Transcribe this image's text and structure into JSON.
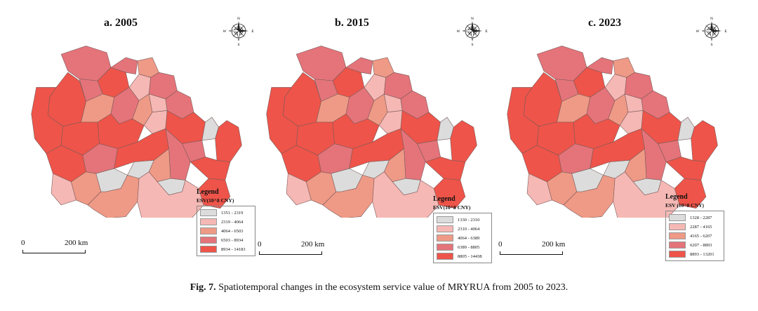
{
  "figure": {
    "caption_label": "Fig. 7.",
    "caption_text": "Spatiotemporal changes in the ecosystem service value of MRYRUA from 2005 to 2023."
  },
  "scale": {
    "zero": "0",
    "distance": "200 km"
  },
  "legend": {
    "title": "Legend"
  },
  "compass": {
    "n": "N",
    "s": "S",
    "e": "E",
    "w": "W"
  },
  "colors": {
    "class1": "#dcdcdc",
    "class2": "#f5b8b4",
    "class3": "#ef9a86",
    "class4": "#e4747a",
    "class5": "#ee5449",
    "border": "#7a5a5a"
  },
  "panels": [
    {
      "title": "a. 2005",
      "unit": "ESV(10^8 CNY)",
      "classes": [
        "1351 - 2319",
        "2319 - 4064",
        "4064 - 6503",
        "6503 - 8934",
        "8934 - 14183"
      ],
      "region_classes": [
        4,
        5,
        4,
        5,
        5,
        4,
        3,
        2,
        3,
        4,
        5,
        4,
        3,
        2,
        5,
        4,
        2,
        5,
        1,
        5,
        5,
        4,
        5,
        4,
        4,
        5,
        3,
        1,
        2,
        3,
        1,
        5,
        1,
        3,
        2
      ]
    },
    {
      "title": "b. 2015",
      "unit": "ESV(10^8 CNY)",
      "classes": [
        "1330 - 2310",
        "2310 - 4064",
        "4064 - 6389",
        "6389 - 8805",
        "8805 - 14438"
      ],
      "region_classes": [
        4,
        5,
        4,
        5,
        5,
        4,
        3,
        2,
        3,
        4,
        5,
        4,
        3,
        2,
        5,
        4,
        2,
        5,
        1,
        5,
        5,
        4,
        5,
        4,
        4,
        5,
        3,
        1,
        2,
        3,
        1,
        5,
        1,
        3,
        2
      ]
    },
    {
      "title": "c. 2023",
      "unit": "ESV (10^8 CNY)",
      "classes": [
        "1328 - 2287",
        "2287 - 4165",
        "4165 - 6207",
        "6207 - 8893",
        "8893 - 13201"
      ],
      "region_classes": [
        4,
        5,
        4,
        5,
        5,
        4,
        3,
        2,
        3,
        4,
        5,
        4,
        3,
        2,
        5,
        4,
        2,
        5,
        1,
        5,
        5,
        4,
        5,
        4,
        4,
        5,
        3,
        1,
        2,
        3,
        1,
        5,
        1,
        3,
        2
      ]
    }
  ]
}
